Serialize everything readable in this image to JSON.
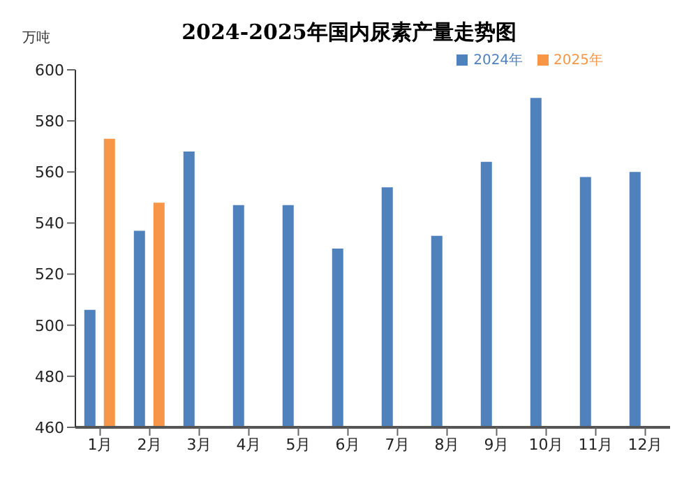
{
  "chart_data": {
    "type": "bar",
    "title": "2024-2025年国内尿素产量走势图",
    "ylabel": "万吨",
    "categories": [
      "1月",
      "2月",
      "3月",
      "4月",
      "5月",
      "6月",
      "7月",
      "8月",
      "9月",
      "10月",
      "11月",
      "12月"
    ],
    "series": [
      {
        "name": "2024年",
        "color": "#4f81bd",
        "values": [
          506,
          537,
          568,
          547,
          547,
          530,
          554,
          535,
          564,
          589,
          558,
          560
        ]
      },
      {
        "name": "2025年",
        "color": "#f79646",
        "values": [
          573,
          548,
          null,
          null,
          null,
          null,
          null,
          null,
          null,
          null,
          null,
          null
        ]
      }
    ],
    "ylim": [
      460,
      600
    ],
    "yticks": [
      460,
      480,
      500,
      520,
      540,
      560,
      580,
      600
    ],
    "grid": false,
    "legend": "top right"
  }
}
